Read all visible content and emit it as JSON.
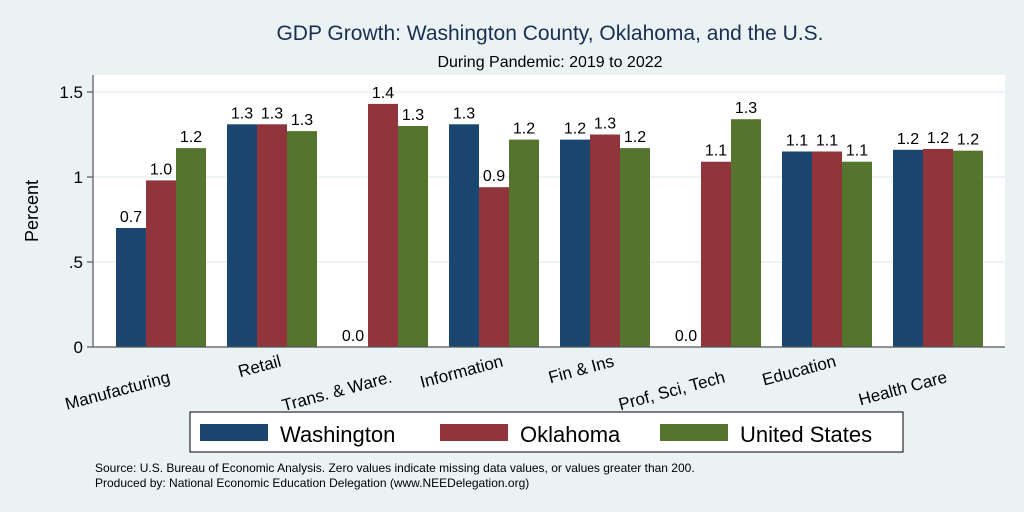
{
  "chart_data": {
    "type": "bar",
    "title": "GDP Growth: Washington County, Oklahoma, and the U.S.",
    "subtitle": "During Pandemic: 2019 to 2022",
    "xlabel": "",
    "ylabel": "Percent",
    "ylim": [
      0,
      1.6
    ],
    "yticks": [
      0,
      0.5,
      1,
      1.5
    ],
    "ytick_labels": [
      "0",
      ".5",
      "1",
      "1.5"
    ],
    "grid": true,
    "legend_position": "bottom",
    "categories": [
      "Manufacturing",
      "Retail",
      "Trans. & Ware.",
      "Information",
      "Fin & Ins",
      "Prof, Sci, Tech",
      "Education",
      "Health Care"
    ],
    "series": [
      {
        "name": "Washington",
        "color": "#1a466f",
        "values": [
          0.7,
          1.31,
          0.0,
          1.31,
          1.22,
          0.0,
          1.15,
          1.16
        ],
        "labels": [
          "0.7",
          "1.3",
          "0.0",
          "1.3",
          "1.2",
          "0.0",
          "1.1",
          "1.2"
        ]
      },
      {
        "name": "Oklahoma",
        "color": "#90353b",
        "values": [
          0.98,
          1.31,
          1.43,
          0.94,
          1.25,
          1.09,
          1.15,
          1.165
        ],
        "labels": [
          "1.0",
          "1.3",
          "1.4",
          "0.9",
          "1.3",
          "1.1",
          "1.1",
          "1.2"
        ]
      },
      {
        "name": "United States",
        "color": "#55752f",
        "values": [
          1.17,
          1.27,
          1.3,
          1.22,
          1.17,
          1.34,
          1.09,
          1.155
        ],
        "labels": [
          "1.2",
          "1.3",
          "1.3",
          "1.2",
          "1.2",
          "1.3",
          "1.1",
          "1.2"
        ]
      }
    ]
  },
  "footer": {
    "source": "Source: U.S. Bureau of Economic Analysis. Zero values indicate missing data values, or values greater than 200.",
    "produced_by": "Produced by: National Economic Education Delegation (www.NEEDelegation.org)"
  }
}
